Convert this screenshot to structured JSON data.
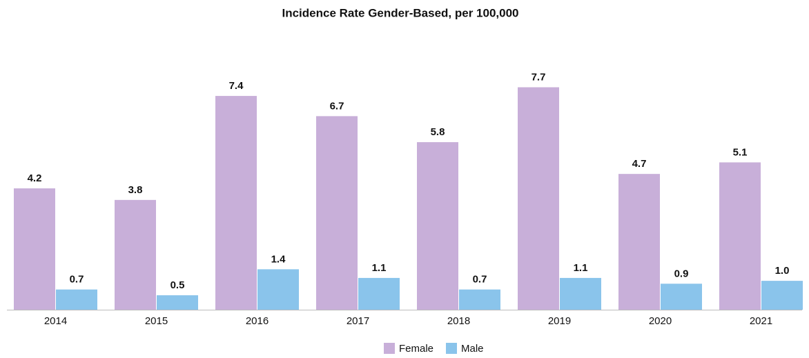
{
  "chart_data": {
    "type": "bar",
    "title": "Incidence Rate Gender-Based, per 100,000",
    "categories": [
      "2014",
      "2015",
      "2016",
      "2017",
      "2018",
      "2019",
      "2020",
      "2021"
    ],
    "series": [
      {
        "name": "Female",
        "color": "#c8afd9",
        "values": [
          4.2,
          3.8,
          7.4,
          6.7,
          5.8,
          7.7,
          4.7,
          5.1
        ],
        "value_labels": [
          "4.2",
          "3.8",
          "7.4",
          "6.7",
          "5.8",
          "7.7",
          "4.7",
          "5.1"
        ]
      },
      {
        "name": "Male",
        "color": "#8ac4eb",
        "values": [
          0.7,
          0.5,
          1.4,
          1.1,
          0.7,
          1.1,
          0.9,
          1.0
        ],
        "value_labels": [
          "0.7",
          "0.5",
          "1.4",
          "1.1",
          "0.7",
          "1.1",
          "0.9",
          "1.0"
        ]
      }
    ],
    "ylim": [
      0,
      8.5
    ],
    "legend": "bottom"
  }
}
